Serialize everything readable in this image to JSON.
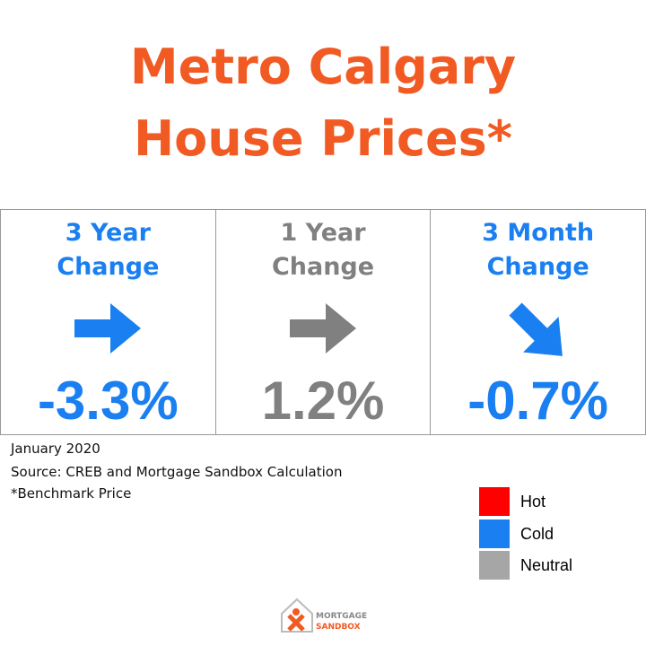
{
  "header": {
    "title_lines": [
      "Metro Calgary",
      "House Prices*"
    ],
    "color": "#f15a22"
  },
  "cards": [
    {
      "label_lines": [
        "3 Year",
        "Change"
      ],
      "value": "-3.3%",
      "color": "#1a7ff0"
    },
    {
      "label_lines": [
        "1 Year",
        "Change"
      ],
      "value": "1.2%",
      "color": "#808080"
    },
    {
      "label_lines": [
        "3 Month",
        "Change"
      ],
      "value": "-0.7%",
      "color": "#1a7ff0"
    }
  ],
  "notes": [
    "January 2020",
    "Source: CREB and Mortgage Sandbox Calculation",
    "*Benchmark Price"
  ],
  "legend": [
    {
      "name": "Hot",
      "color": "#ff0000"
    },
    {
      "name": "Cold",
      "color": "#1a7ff0"
    },
    {
      "name": "Neutral",
      "color": "#a6a6a6"
    }
  ],
  "logo": {
    "lines": [
      "MORTGAGE",
      "SANDBOX"
    ]
  }
}
